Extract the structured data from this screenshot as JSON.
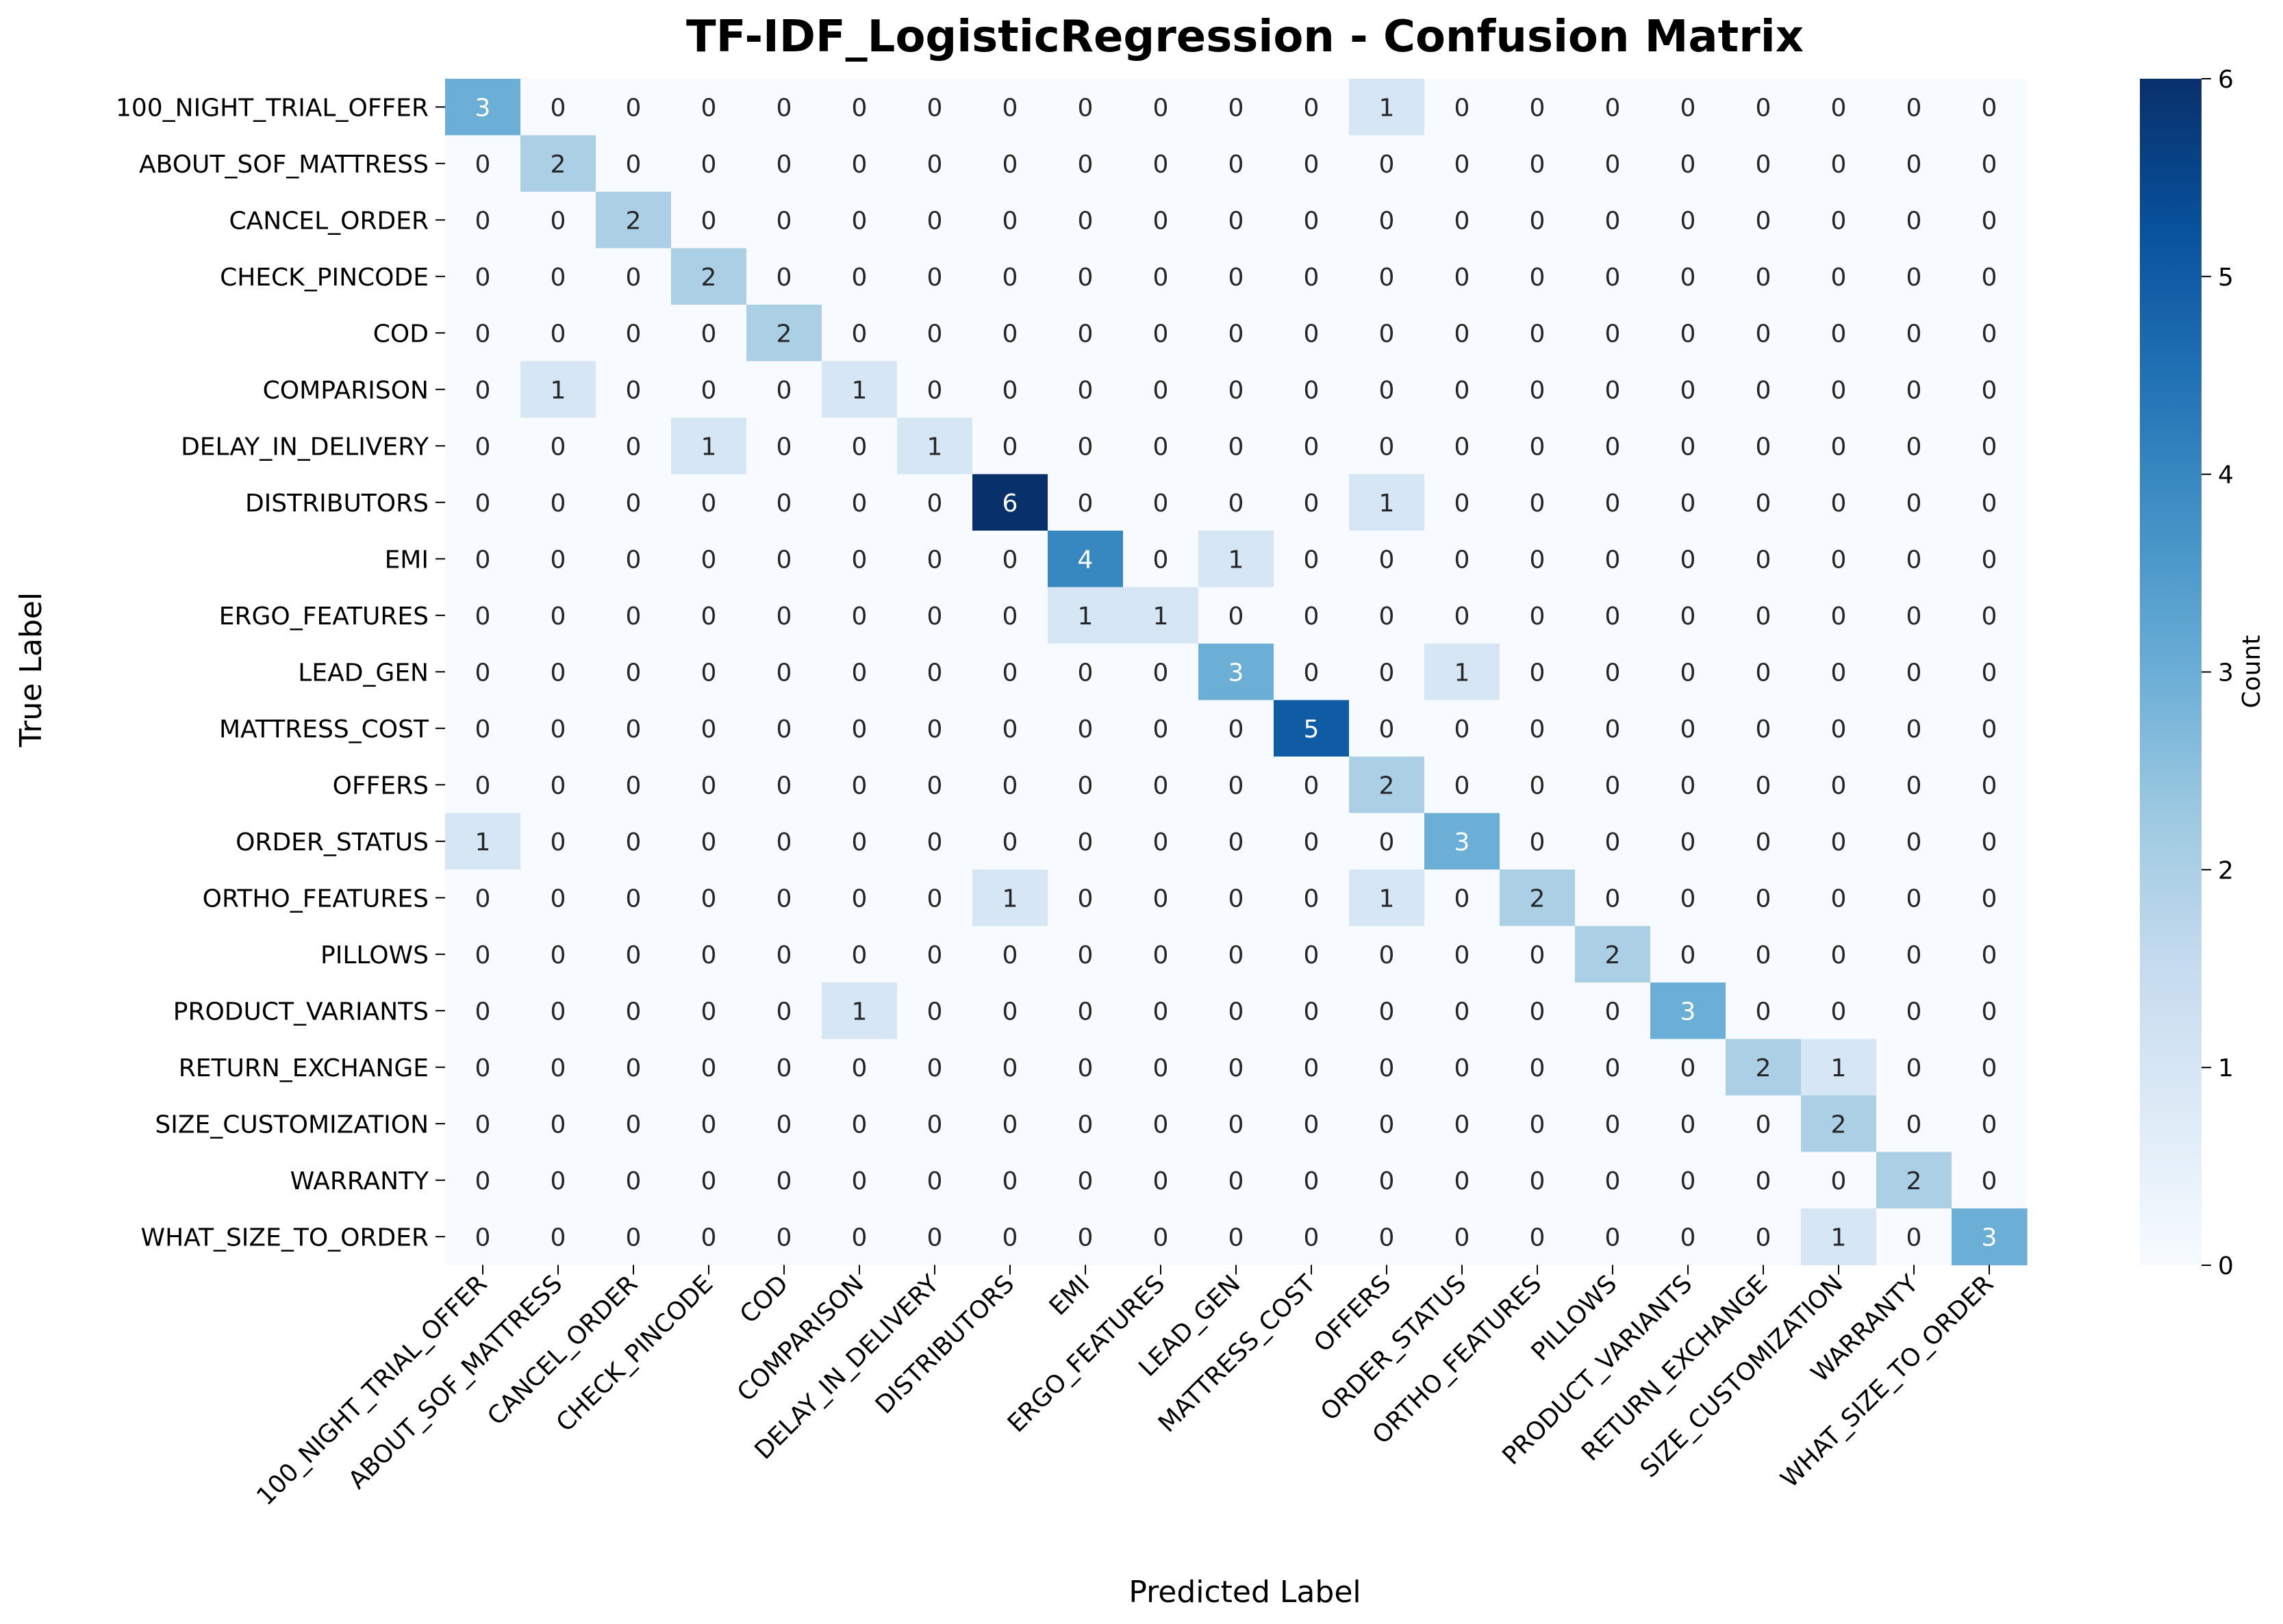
{
  "chart_data": {
    "type": "heatmap",
    "title": "TF-IDF_LogisticRegression - Confusion Matrix",
    "xlabel": "Predicted Label",
    "ylabel": "True Label",
    "colorbar_label": "Count",
    "colormap": "Blues",
    "colorbar_range": [
      0,
      6
    ],
    "colorbar_ticks": [
      0,
      1,
      2,
      3,
      4,
      5,
      6
    ],
    "labels": [
      "100_NIGHT_TRIAL_OFFER",
      "ABOUT_SOF_MATTRESS",
      "CANCEL_ORDER",
      "CHECK_PINCODE",
      "COD",
      "COMPARISON",
      "DELAY_IN_DELIVERY",
      "DISTRIBUTORS",
      "EMI",
      "ERGO_FEATURES",
      "LEAD_GEN",
      "MATTRESS_COST",
      "OFFERS",
      "ORDER_STATUS",
      "ORTHO_FEATURES",
      "PILLOWS",
      "PRODUCT_VARIANTS",
      "RETURN_EXCHANGE",
      "SIZE_CUSTOMIZATION",
      "WARRANTY",
      "WHAT_SIZE_TO_ORDER"
    ],
    "matrix": [
      [
        3,
        0,
        0,
        0,
        0,
        0,
        0,
        0,
        0,
        0,
        0,
        0,
        1,
        0,
        0,
        0,
        0,
        0,
        0,
        0,
        0
      ],
      [
        0,
        2,
        0,
        0,
        0,
        0,
        0,
        0,
        0,
        0,
        0,
        0,
        0,
        0,
        0,
        0,
        0,
        0,
        0,
        0,
        0
      ],
      [
        0,
        0,
        2,
        0,
        0,
        0,
        0,
        0,
        0,
        0,
        0,
        0,
        0,
        0,
        0,
        0,
        0,
        0,
        0,
        0,
        0
      ],
      [
        0,
        0,
        0,
        2,
        0,
        0,
        0,
        0,
        0,
        0,
        0,
        0,
        0,
        0,
        0,
        0,
        0,
        0,
        0,
        0,
        0
      ],
      [
        0,
        0,
        0,
        0,
        2,
        0,
        0,
        0,
        0,
        0,
        0,
        0,
        0,
        0,
        0,
        0,
        0,
        0,
        0,
        0,
        0
      ],
      [
        0,
        1,
        0,
        0,
        0,
        1,
        0,
        0,
        0,
        0,
        0,
        0,
        0,
        0,
        0,
        0,
        0,
        0,
        0,
        0,
        0
      ],
      [
        0,
        0,
        0,
        1,
        0,
        0,
        1,
        0,
        0,
        0,
        0,
        0,
        0,
        0,
        0,
        0,
        0,
        0,
        0,
        0,
        0
      ],
      [
        0,
        0,
        0,
        0,
        0,
        0,
        0,
        6,
        0,
        0,
        0,
        0,
        1,
        0,
        0,
        0,
        0,
        0,
        0,
        0,
        0
      ],
      [
        0,
        0,
        0,
        0,
        0,
        0,
        0,
        0,
        4,
        0,
        1,
        0,
        0,
        0,
        0,
        0,
        0,
        0,
        0,
        0,
        0
      ],
      [
        0,
        0,
        0,
        0,
        0,
        0,
        0,
        0,
        1,
        1,
        0,
        0,
        0,
        0,
        0,
        0,
        0,
        0,
        0,
        0,
        0
      ],
      [
        0,
        0,
        0,
        0,
        0,
        0,
        0,
        0,
        0,
        0,
        3,
        0,
        0,
        1,
        0,
        0,
        0,
        0,
        0,
        0,
        0
      ],
      [
        0,
        0,
        0,
        0,
        0,
        0,
        0,
        0,
        0,
        0,
        0,
        5,
        0,
        0,
        0,
        0,
        0,
        0,
        0,
        0,
        0
      ],
      [
        0,
        0,
        0,
        0,
        0,
        0,
        0,
        0,
        0,
        0,
        0,
        0,
        2,
        0,
        0,
        0,
        0,
        0,
        0,
        0,
        0
      ],
      [
        1,
        0,
        0,
        0,
        0,
        0,
        0,
        0,
        0,
        0,
        0,
        0,
        0,
        3,
        0,
        0,
        0,
        0,
        0,
        0,
        0
      ],
      [
        0,
        0,
        0,
        0,
        0,
        0,
        0,
        1,
        0,
        0,
        0,
        0,
        1,
        0,
        2,
        0,
        0,
        0,
        0,
        0,
        0
      ],
      [
        0,
        0,
        0,
        0,
        0,
        0,
        0,
        0,
        0,
        0,
        0,
        0,
        0,
        0,
        0,
        2,
        0,
        0,
        0,
        0,
        0
      ],
      [
        0,
        0,
        0,
        0,
        0,
        1,
        0,
        0,
        0,
        0,
        0,
        0,
        0,
        0,
        0,
        0,
        3,
        0,
        0,
        0,
        0
      ],
      [
        0,
        0,
        0,
        0,
        0,
        0,
        0,
        0,
        0,
        0,
        0,
        0,
        0,
        0,
        0,
        0,
        0,
        2,
        1,
        0,
        0
      ],
      [
        0,
        0,
        0,
        0,
        0,
        0,
        0,
        0,
        0,
        0,
        0,
        0,
        0,
        0,
        0,
        0,
        0,
        0,
        2,
        0,
        0
      ],
      [
        0,
        0,
        0,
        0,
        0,
        0,
        0,
        0,
        0,
        0,
        0,
        0,
        0,
        0,
        0,
        0,
        0,
        0,
        0,
        2,
        0
      ],
      [
        0,
        0,
        0,
        0,
        0,
        0,
        0,
        0,
        0,
        0,
        0,
        0,
        0,
        0,
        0,
        0,
        0,
        0,
        1,
        0,
        3
      ]
    ]
  }
}
